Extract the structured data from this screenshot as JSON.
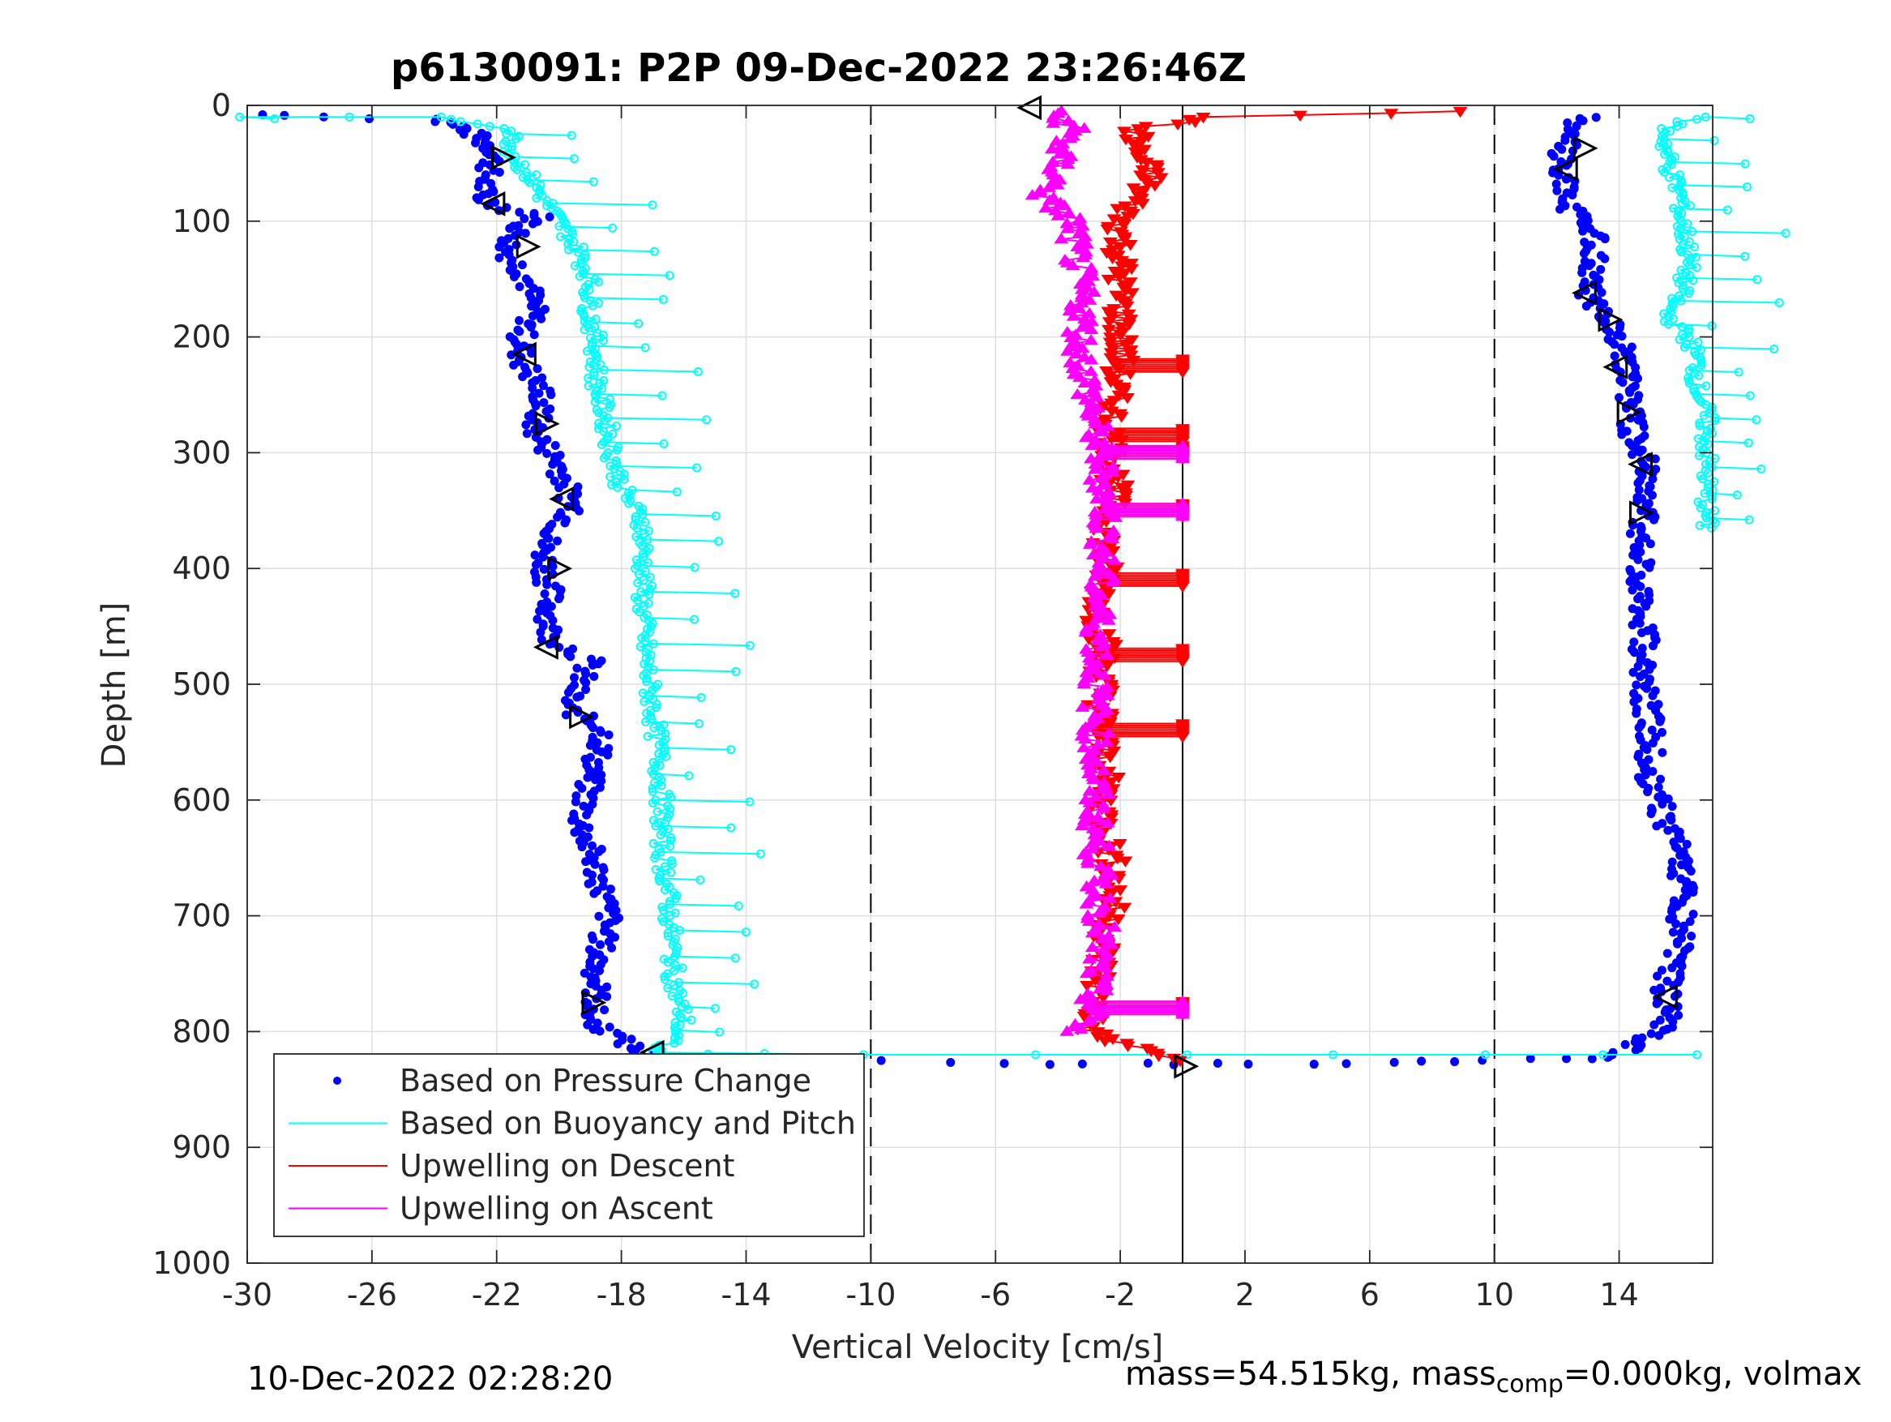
{
  "chart_data": {
    "type": "scatter",
    "title": "p6130091: P2P 09-Dec-2022 23:26:46Z",
    "xlabel": "Vertical Velocity [cm/s]",
    "ylabel": "Depth [m]",
    "xlim": [
      -30,
      17
    ],
    "ylim": [
      0,
      1000
    ],
    "y_reversed": true,
    "x_ticks": [
      -30,
      -26,
      -22,
      -18,
      -14,
      -10,
      -6,
      -2,
      2,
      6,
      10,
      14
    ],
    "x_tick_labels": [
      "-30",
      "-26",
      "-22",
      "-18",
      "-14",
      "-10",
      "-6",
      "-2",
      "2",
      "6",
      "10",
      "14"
    ],
    "y_ticks": [
      0,
      100,
      200,
      300,
      400,
      500,
      600,
      700,
      800,
      900,
      1000
    ],
    "y_tick_labels": [
      "0",
      "100",
      "200",
      "300",
      "400",
      "500",
      "600",
      "700",
      "800",
      "900",
      "1000"
    ],
    "grid": true,
    "legend_position": "bottom-left",
    "reference_lines": [
      {
        "x": -10,
        "style": "dashed"
      },
      {
        "x": 10,
        "style": "dashed"
      },
      {
        "x": 0,
        "style": "solid"
      }
    ],
    "series": [
      {
        "name": "Based on Pressure Change",
        "marker": "dot",
        "color": "#0000ff",
        "profiles": [
          {
            "points": [
              [
                -29.5,
                8
              ],
              [
                -27.5,
                10
              ],
              [
                -24,
                12
              ],
              [
                -23,
                20
              ],
              [
                -22.5,
                30
              ],
              [
                -22,
                40
              ],
              [
                -22.3,
                60
              ],
              [
                -22.5,
                80
              ],
              [
                -21.6,
                90
              ],
              [
                -20.5,
                95
              ],
              [
                -21.2,
                105
              ],
              [
                -21.7,
                125
              ],
              [
                -21,
                150
              ],
              [
                -20.8,
                180
              ],
              [
                -21.2,
                200
              ],
              [
                -21.2,
                220
              ],
              [
                -20.5,
                250
              ],
              [
                -20.8,
                280
              ],
              [
                -20,
                310
              ],
              [
                -19.5,
                350
              ],
              [
                -20.5,
                380
              ],
              [
                -20.3,
                420
              ],
              [
                -20.3,
                460
              ],
              [
                -19,
                480
              ],
              [
                -19.8,
                520
              ],
              [
                -18.5,
                540
              ],
              [
                -19,
                580
              ],
              [
                -19.3,
                620
              ],
              [
                -18.8,
                660
              ],
              [
                -18.4,
                700
              ],
              [
                -18.8,
                740
              ],
              [
                -18.8,
                770
              ],
              [
                -19,
                790
              ],
              [
                -17.8,
                810
              ],
              [
                -17.2,
                822
              ],
              [
                -11.8,
                823
              ],
              [
                -7.5,
                826
              ],
              [
                -4.5,
                828
              ],
              [
                -1.5,
                828
              ],
              [
                1,
                828
              ],
              [
                4,
                828
              ],
              [
                7,
                826
              ],
              [
                9,
                826
              ],
              [
                11,
                824
              ],
              [
                13,
                824
              ],
              [
                14,
                818
              ],
              [
                15,
                805
              ],
              [
                15.6,
                790
              ],
              [
                15.5,
                760
              ],
              [
                16,
                720
              ],
              [
                16,
                680
              ],
              [
                16,
                650
              ],
              [
                15.5,
                620
              ],
              [
                15,
                580
              ],
              [
                15,
                540
              ],
              [
                14.8,
                500
              ],
              [
                14.8,
                460
              ],
              [
                14.7,
                420
              ],
              [
                14.6,
                380
              ],
              [
                14.8,
                350
              ],
              [
                15,
                320
              ],
              [
                14.5,
                290
              ],
              [
                14.3,
                260
              ],
              [
                14.3,
                230
              ],
              [
                14,
                200
              ],
              [
                13.4,
                180
              ],
              [
                13,
                160
              ],
              [
                13.2,
                130
              ],
              [
                13.2,
                110
              ],
              [
                12.5,
                90
              ],
              [
                12.3,
                70
              ],
              [
                12,
                50
              ],
              [
                12.5,
                30
              ],
              [
                12.5,
                15
              ],
              [
                13,
                10
              ]
            ]
          }
        ]
      },
      {
        "name": "Based on Buoyancy and Pitch",
        "marker": "circle-line",
        "color": "#00ffff",
        "profiles": [
          {
            "points": [
              [
                -30,
                10
              ],
              [
                -24,
                10
              ],
              [
                -21.5,
                20
              ],
              [
                -21.5,
                40
              ],
              [
                -21,
                60
              ],
              [
                -20.5,
                80
              ],
              [
                -20,
                100
              ],
              [
                -19.5,
                120
              ],
              [
                -19,
                150
              ],
              [
                -19,
                180
              ],
              [
                -18.8,
                210
              ],
              [
                -18.8,
                240
              ],
              [
                -18.5,
                270
              ],
              [
                -18.3,
                300
              ],
              [
                -18,
                330
              ],
              [
                -17.3,
                360
              ],
              [
                -17.3,
                400
              ],
              [
                -17.3,
                440
              ],
              [
                -17.2,
                480
              ],
              [
                -17,
                520
              ],
              [
                -16.8,
                560
              ],
              [
                -16.7,
                600
              ],
              [
                -16.7,
                640
              ],
              [
                -16.5,
                680
              ],
              [
                -16.4,
                720
              ],
              [
                -16.3,
                760
              ],
              [
                -16,
                790
              ],
              [
                -16.5,
                810
              ],
              [
                -17,
                818
              ],
              [
                -10,
                820
              ],
              [
                0,
                820
              ],
              [
                10,
                820
              ],
              [
                16.5,
                820
              ]
            ]
          },
          {
            "points": [
              [
                16.5,
                10
              ],
              [
                15.5,
                20
              ],
              [
                15.5,
                40
              ],
              [
                15.7,
                60
              ],
              [
                16,
                80
              ],
              [
                16,
                100
              ],
              [
                16.2,
                120
              ],
              [
                16.2,
                140
              ],
              [
                16,
                160
              ],
              [
                15.5,
                180
              ],
              [
                16.2,
                200
              ],
              [
                16.5,
                220
              ],
              [
                16.5,
                240
              ],
              [
                16.8,
                270
              ],
              [
                16.8,
                290
              ],
              [
                16.8,
                350
              ],
              [
                16.8,
                365
              ]
            ]
          }
        ]
      },
      {
        "name": "Upwelling on Descent",
        "marker": "triangle-down",
        "color": "#ff0000",
        "profiles": [
          {
            "points": [
              [
                9,
                5
              ],
              [
                1,
                10
              ],
              [
                -1.5,
                20
              ],
              [
                -1.5,
                40
              ],
              [
                -1,
                60
              ],
              [
                -1.5,
                80
              ],
              [
                -2,
                100
              ],
              [
                -2,
                120
              ],
              [
                -2,
                150
              ],
              [
                -2,
                180
              ],
              [
                -2,
                200
              ],
              [
                -2,
                220
              ],
              [
                -2.2,
                250
              ],
              [
                -2.3,
                280
              ],
              [
                -2.2,
                300
              ],
              [
                -2.2,
                330
              ],
              [
                -2.3,
                350
              ],
              [
                -2.5,
                380
              ],
              [
                -2.5,
                410
              ],
              [
                -2.7,
                440
              ],
              [
                -2.5,
                470
              ],
              [
                -2.6,
                500
              ],
              [
                -2.6,
                540
              ],
              [
                -2.5,
                580
              ],
              [
                -2.5,
                620
              ],
              [
                -2.2,
                660
              ],
              [
                -2.3,
                700
              ],
              [
                -2.6,
                740
              ],
              [
                -2.8,
                780
              ],
              [
                -3,
                800
              ],
              [
                -2,
                810
              ],
              [
                0,
                825
              ]
            ]
          },
          {
            "flags": true,
            "points": [
              [
                0,
                225
              ],
              [
                0,
                285
              ],
              [
                0,
                300
              ],
              [
                0,
                350
              ],
              [
                0,
                410
              ],
              [
                0,
                475
              ],
              [
                0,
                540
              ],
              [
                0,
                780
              ]
            ]
          }
        ]
      },
      {
        "name": "Upwelling on Ascent",
        "marker": "triangle-up",
        "color": "#ff00ff",
        "profiles": [
          {
            "points": [
              [
                -4.3,
                5
              ],
              [
                -3.5,
                20
              ],
              [
                -4,
                40
              ],
              [
                -4,
                60
              ],
              [
                -4.5,
                80
              ],
              [
                -3.5,
                100
              ],
              [
                -3.5,
                120
              ],
              [
                -3.3,
                150
              ],
              [
                -3.2,
                180
              ],
              [
                -3.3,
                210
              ],
              [
                -3,
                250
              ],
              [
                -2.8,
                280
              ],
              [
                -2.6,
                310
              ],
              [
                -2.5,
                340
              ],
              [
                -2.5,
                370
              ],
              [
                -2.6,
                400
              ],
              [
                -2.7,
                430
              ],
              [
                -2.7,
                470
              ],
              [
                -2.8,
                510
              ],
              [
                -2.8,
                550
              ],
              [
                -2.8,
                590
              ],
              [
                -2.8,
                630
              ],
              [
                -2.7,
                670
              ],
              [
                -2.6,
                710
              ],
              [
                -2.8,
                750
              ],
              [
                -3,
                790
              ],
              [
                -3.5,
                800
              ]
            ]
          },
          {
            "flags": true,
            "points": [
              [
                0,
                300
              ],
              [
                0,
                350
              ],
              [
                0,
                780
              ]
            ]
          }
        ]
      }
    ],
    "orientation_markers": [
      {
        "x": -4.9,
        "y": 2,
        "dir": "left"
      },
      {
        "x": -21.8,
        "y": 45,
        "dir": "right"
      },
      {
        "x": -22.1,
        "y": 85,
        "dir": "left"
      },
      {
        "x": -21,
        "y": 122,
        "dir": "right"
      },
      {
        "x": -21.1,
        "y": 215,
        "dir": "left"
      },
      {
        "x": -20.4,
        "y": 275,
        "dir": "right"
      },
      {
        "x": -19.9,
        "y": 340,
        "dir": "left"
      },
      {
        "x": -20.0,
        "y": 400,
        "dir": "right"
      },
      {
        "x": -20.4,
        "y": 468,
        "dir": "left"
      },
      {
        "x": -19.3,
        "y": 528,
        "dir": "right"
      },
      {
        "x": -18.9,
        "y": 775,
        "dir": "right"
      },
      {
        "x": -17,
        "y": 818,
        "dir": "left"
      },
      {
        "x": 12.3,
        "y": 55,
        "dir": "left"
      },
      {
        "x": 12.9,
        "y": 37,
        "dir": "right"
      },
      {
        "x": 12.9,
        "y": 162,
        "dir": "left"
      },
      {
        "x": 13.7,
        "y": 185,
        "dir": "right"
      },
      {
        "x": 13.9,
        "y": 226,
        "dir": "left"
      },
      {
        "x": 14.3,
        "y": 265,
        "dir": "right"
      },
      {
        "x": 14.7,
        "y": 310,
        "dir": "left"
      },
      {
        "x": 14.7,
        "y": 352,
        "dir": "right"
      },
      {
        "x": 15.5,
        "y": 770,
        "dir": "left"
      },
      {
        "x": 0.1,
        "y": 830,
        "dir": "right"
      }
    ],
    "legend": [
      {
        "label": "Based on Pressure Change",
        "color": "#0000ff",
        "style": "dot"
      },
      {
        "label": "Based on Buoyancy and Pitch",
        "color": "#00ffff",
        "style": "line"
      },
      {
        "label": "Upwelling on Descent",
        "color": "#ff0000",
        "style": "line"
      },
      {
        "label": "Upwelling on Ascent",
        "color": "#ff00ff",
        "style": "line"
      }
    ]
  },
  "footer": {
    "timestamp": "10-Dec-2022 02:28:20",
    "mass_text": "mass=54.515kg, mass",
    "mass_sub": "comp",
    "mass_tail": "=0.000kg, volmax"
  }
}
